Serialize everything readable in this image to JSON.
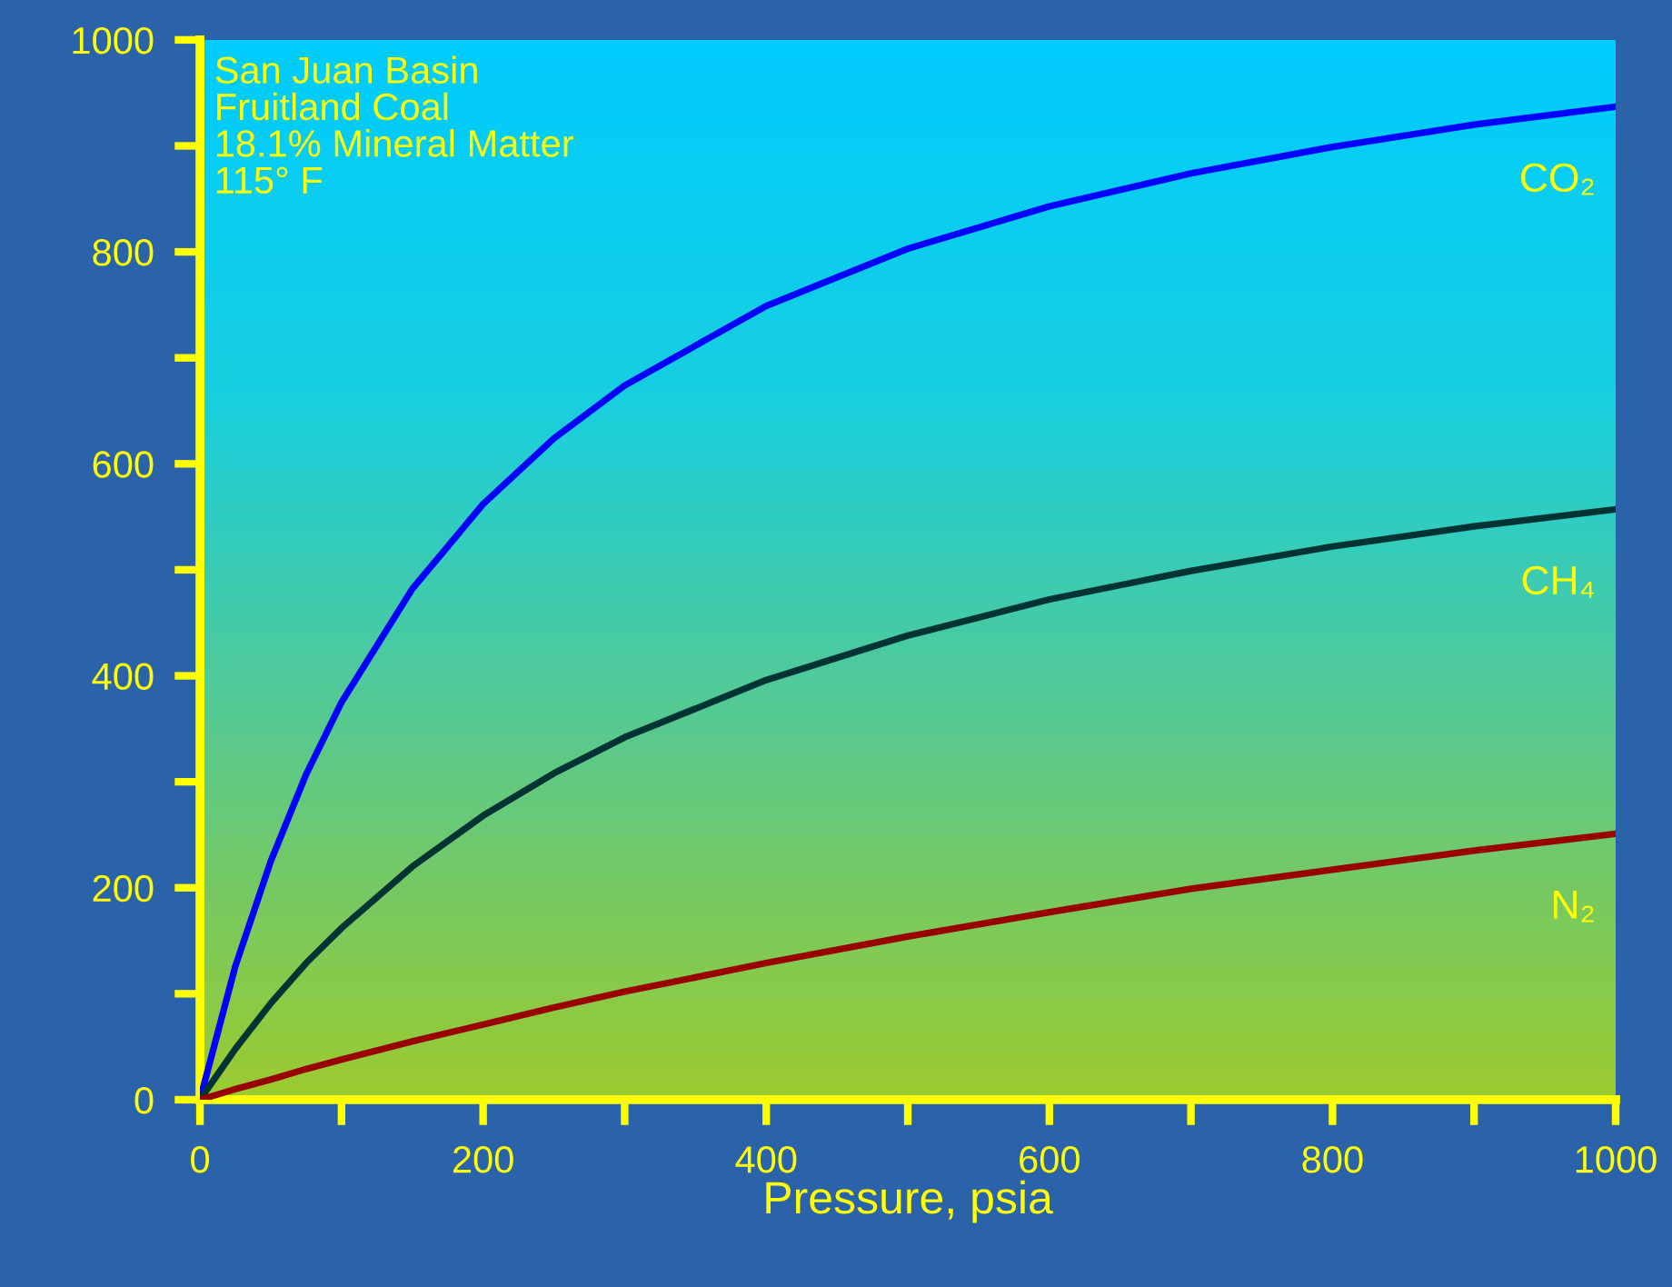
{
  "chart_data": {
    "type": "line",
    "xlabel": "Pressure, psia",
    "annotations": [
      "San Juan Basin\nFruitland Coal\n18.1% Mineral Matter\n115° F"
    ],
    "x": [
      0,
      25,
      50,
      75,
      100,
      150,
      200,
      250,
      300,
      400,
      500,
      600,
      700,
      800,
      900,
      1000
    ],
    "series": [
      {
        "name": "CO₂",
        "color": "#0000ff",
        "values": [
          0,
          126,
          225,
          307,
          375,
          482,
          562,
          624,
          674,
          749,
          803,
          843,
          874,
          899,
          920,
          937
        ]
      },
      {
        "name": "CH₄",
        "color": "#003333",
        "values": [
          0,
          48,
          91,
          129,
          162,
          220,
          268,
          308,
          342,
          396,
          438,
          472,
          499,
          522,
          541,
          557
        ]
      },
      {
        "name": "N₂",
        "color": "#990000",
        "values": [
          0,
          10,
          19,
          29,
          38,
          55,
          71,
          87,
          102,
          129,
          154,
          177,
          199,
          217,
          235,
          251
        ]
      }
    ],
    "xlim": [
      0,
      1000
    ],
    "ylim": [
      0,
      1000
    ],
    "xticks": [
      0,
      {
        "value": 100,
        "label": null
      },
      200,
      {
        "value": 300,
        "label": null
      },
      400,
      {
        "value": 500,
        "label": null
      },
      600,
      {
        "value": 700,
        "label": null
      },
      800,
      {
        "value": 900,
        "label": null
      },
      1000
    ],
    "yticks": [
      0,
      {
        "value": 100,
        "label": null
      },
      200,
      {
        "value": 300,
        "label": null
      },
      400,
      {
        "value": 500,
        "label": null
      },
      600,
      {
        "value": 700,
        "label": null
      },
      800,
      {
        "value": 900,
        "label": null
      },
      1000
    ],
    "grid": false,
    "legend": false,
    "marker": "none",
    "line_style": "solid"
  }
}
